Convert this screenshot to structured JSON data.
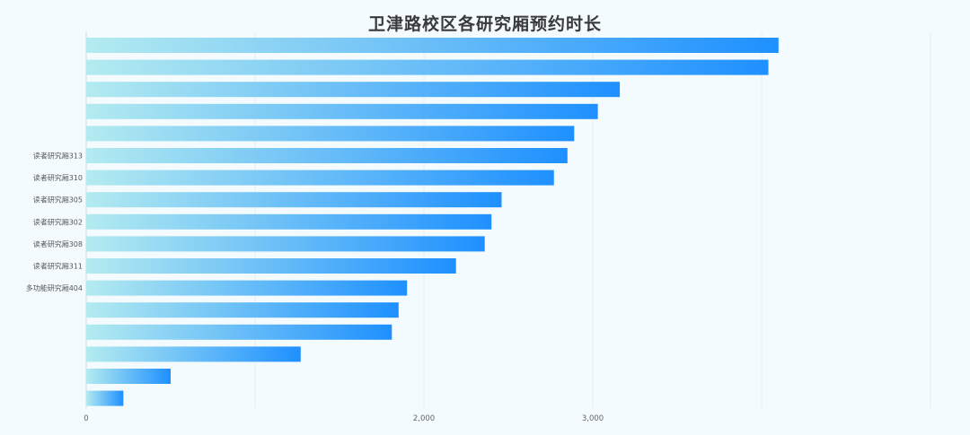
{
  "chart_data": {
    "type": "bar",
    "orientation": "horizontal",
    "title": "卫津路校区各研究厢预约时长",
    "xlabel": "",
    "ylabel": "",
    "xlim": [
      0,
      5000
    ],
    "x_ticks": [
      0,
      1000,
      2000,
      3000,
      4000,
      5000
    ],
    "x_tick_labels": [
      "0",
      "",
      "2,000",
      "3,000",
      "",
      ""
    ],
    "grid": true,
    "legend": "none",
    "categories": [
      "",
      "",
      "",
      "",
      "",
      "读者研究厢313",
      "读者研究厢310",
      "读者研究厢305",
      "读者研究厢302",
      "读者研究厢308",
      "读者研究厢311",
      "多功能研究厢404",
      "",
      "",
      "",
      "",
      ""
    ],
    "values": [
      4100,
      4040,
      3160,
      3030,
      2890,
      2850,
      2770,
      2460,
      2400,
      2360,
      2190,
      1900,
      1850,
      1810,
      1270,
      500,
      220
    ],
    "colors": {
      "bar_start": "#b3ebf0",
      "bar_end": "#1e90ff",
      "grid": "#e6eef2",
      "axis_line": "#cfd8dc",
      "tick_label": "#666666",
      "category_label": "#555555"
    }
  }
}
